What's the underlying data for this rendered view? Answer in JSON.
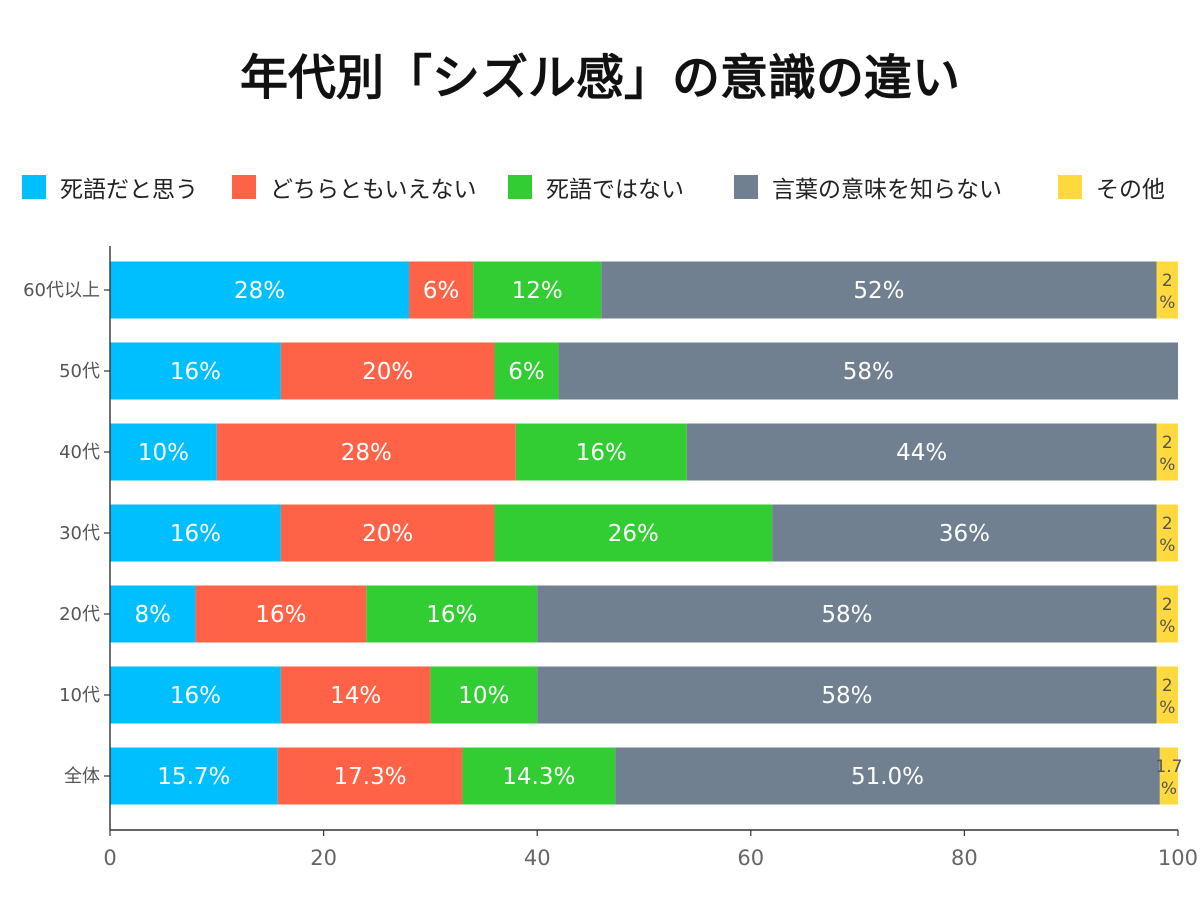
{
  "chart_data": {
    "type": "bar",
    "orientation": "horizontal",
    "stacked": true,
    "title": "年代別「シズル感」の意識の違い",
    "categories": [
      "60代以上",
      "50代",
      "40代",
      "30代",
      "20代",
      "10代",
      "全体"
    ],
    "series": [
      {
        "name": "死語だと思う",
        "color": "#00BFFF",
        "values": [
          28,
          16,
          10,
          16,
          8,
          16,
          15.7
        ],
        "labels": [
          "28%",
          "16%",
          "10%",
          "16%",
          "8%",
          "16%",
          "15.7%"
        ]
      },
      {
        "name": "どちらともいえない",
        "color": "#FF6347",
        "values": [
          6,
          20,
          28,
          20,
          16,
          14,
          17.3
        ],
        "labels": [
          "6%",
          "20%",
          "28%",
          "20%",
          "16%",
          "14%",
          "17.3%"
        ]
      },
      {
        "name": "死語ではない",
        "color": "#32CD32",
        "values": [
          12,
          6,
          16,
          26,
          16,
          10,
          14.3
        ],
        "labels": [
          "12%",
          "6%",
          "16%",
          "26%",
          "16%",
          "10%",
          "14.3%"
        ]
      },
      {
        "name": "言葉の意味を知らない",
        "color": "#708090",
        "values": [
          52,
          58,
          44,
          36,
          58,
          58,
          51.0
        ],
        "labels": [
          "52%",
          "58%",
          "44%",
          "36%",
          "58%",
          "58%",
          "51.0%"
        ]
      },
      {
        "name": "その他",
        "color": "#FFD93D",
        "values": [
          2,
          0,
          2,
          2,
          2,
          2,
          1.7
        ],
        "labels": [
          "2%",
          "",
          "2%",
          "2%",
          "2%",
          "2%",
          "1.7%"
        ]
      }
    ],
    "xlim": [
      0,
      100
    ],
    "xticks": [
      "0",
      "20",
      "40",
      "60",
      "80",
      "100"
    ],
    "legend_position": "top",
    "grid": false
  }
}
